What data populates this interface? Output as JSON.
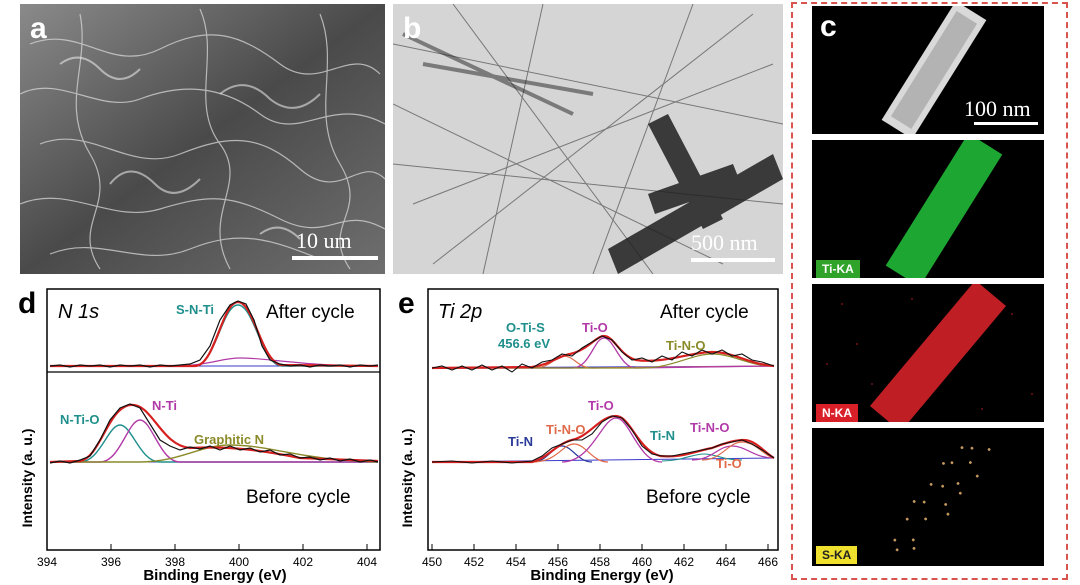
{
  "panels": {
    "a": {
      "label": "a",
      "scale": "10 um"
    },
    "b": {
      "label": "b",
      "scale": "500 nm"
    },
    "c": {
      "label": "c",
      "scale": "100 nm",
      "maps": [
        {
          "label": "Ti-KA",
          "color": "#22c33a",
          "chip_bg": "#2fa32a"
        },
        {
          "label": "N-KA",
          "color": "#e0242a",
          "chip_bg": "#d92028"
        },
        {
          "label": "S-KA",
          "color": "#d9a86a",
          "chip_bg": "#efe12d"
        }
      ]
    },
    "d": {
      "label": "d",
      "title": "N 1s",
      "after": "After cycle",
      "before": "Before cycle",
      "peaks": {
        "sn_ti": "S-N-Ti",
        "n_ti_o": "N-Ti-O",
        "n_ti": "N-Ti",
        "graphitic": "Graphitic N"
      },
      "xlabel": "Binding Energy (eV)",
      "ylabel": "Intensity (a. u.)",
      "xticks": [
        "394",
        "396",
        "398",
        "400",
        "402",
        "404"
      ]
    },
    "e": {
      "label": "e",
      "title": "Ti 2p",
      "after": "After cycle",
      "before": "Before cycle",
      "peaks": {
        "o_ti_s": "O-Ti-S",
        "o_ti_s_ev": "456.6 eV",
        "ti_o_top": "Ti-O",
        "ti_n_o_top": "Ti-N-O",
        "ti_n_1": "Ti-N",
        "ti_n_o_1": "Ti-N-O",
        "ti_o_1": "Ti-O",
        "ti_n_2": "Ti-N",
        "ti_n_o_2": "Ti-N-O",
        "ti_o_2": "Ti-O"
      },
      "xlabel": "Binding Energy (eV)",
      "ylabel": "Intensity (a. u.)",
      "xticks": [
        "450",
        "452",
        "454",
        "456",
        "458",
        "460",
        "462",
        "464",
        "466"
      ]
    }
  },
  "colors": {
    "experimental": "#111111",
    "fit": "#d61f1f",
    "teal": "#1f8f8c",
    "magenta": "#b23aa8",
    "olive": "#8a8a2a",
    "blue": "#2a3a9a",
    "salmon": "#e06a4a",
    "box": "#d9534f"
  }
}
